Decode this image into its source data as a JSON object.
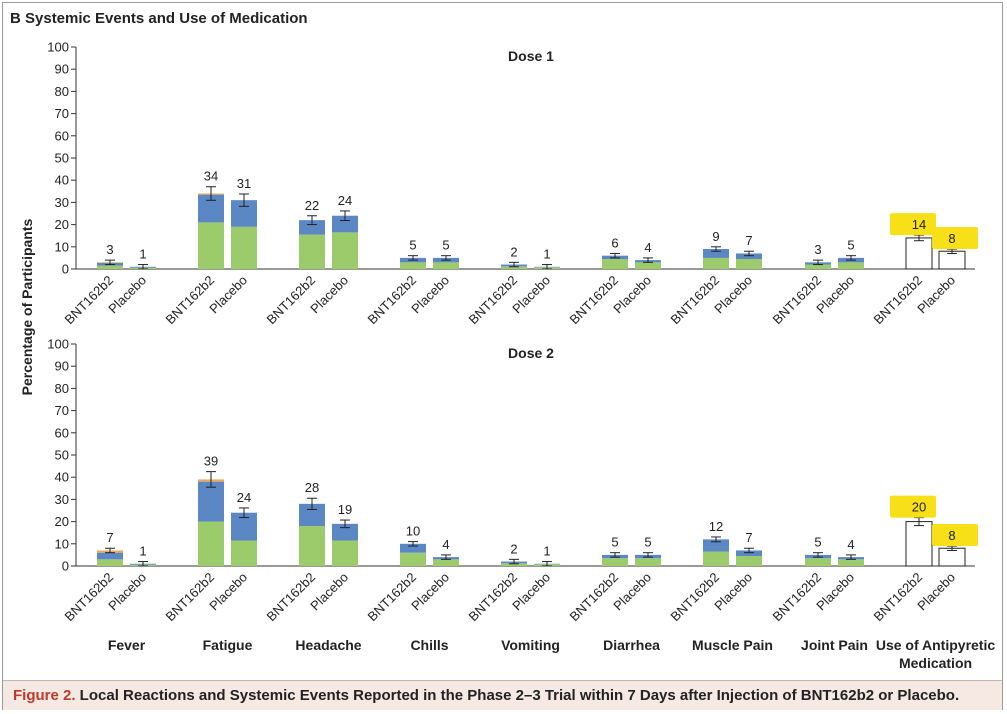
{
  "panel": {
    "title": "B  Systemic Events and Use of Medication"
  },
  "caption": {
    "label": "Figure 2.",
    "text": " Local Reactions and Systemic Events Reported in the Phase 2–3 Trial within 7 Days after Injection of BNT162b2 or Placebo."
  },
  "colors": {
    "mild": "#9ccb6b",
    "moderate": "#5b87c4",
    "severe": "#e9a85c",
    "highlight": "#f7e017",
    "outline_bar": "#ffffff"
  },
  "chart_data": {
    "type": "bar",
    "stacked": true,
    "ylabel": "Percentage of Participants",
    "ylim": [
      0,
      100
    ],
    "yticks": [
      0,
      10,
      20,
      30,
      40,
      50,
      60,
      70,
      80,
      90,
      100
    ],
    "groups": [
      "BNT162b2",
      "Placebo"
    ],
    "categories": [
      "Fever",
      "Fatigue",
      "Headache",
      "Chills",
      "Vomiting",
      "Diarrhea",
      "Muscle Pain",
      "Joint Pain",
      "Use of Antipyretic Medication"
    ],
    "panels": [
      {
        "title": "Dose 1",
        "totals": [
          [
            3,
            1
          ],
          [
            34,
            31
          ],
          [
            22,
            24
          ],
          [
            5,
            5
          ],
          [
            2,
            1
          ],
          [
            6,
            4
          ],
          [
            9,
            7
          ],
          [
            3,
            5
          ],
          [
            14,
            8
          ]
        ],
        "mild": [
          [
            1.5,
            0.6
          ],
          [
            21,
            19
          ],
          [
            15.5,
            16.5
          ],
          [
            3,
            3
          ],
          [
            1.2,
            0.8
          ],
          [
            4.5,
            3
          ],
          [
            5,
            4.5
          ],
          [
            2,
            3
          ],
          [
            0,
            0
          ]
        ],
        "moderate": [
          [
            1.2,
            0.4
          ],
          [
            12.5,
            12
          ],
          [
            6.5,
            7.5
          ],
          [
            2,
            2
          ],
          [
            0.8,
            0.2
          ],
          [
            1.5,
            1
          ],
          [
            4,
            2.5
          ],
          [
            1,
            2
          ],
          [
            0,
            0
          ]
        ],
        "severe": [
          [
            0.3,
            0
          ],
          [
            0.5,
            0
          ],
          [
            0,
            0
          ],
          [
            0,
            0
          ],
          [
            0,
            0
          ],
          [
            0,
            0
          ],
          [
            0,
            0
          ],
          [
            0,
            0
          ],
          [
            0,
            0
          ]
        ],
        "highlighted": [
          false,
          false,
          false,
          false,
          false,
          false,
          false,
          false,
          true
        ]
      },
      {
        "title": "Dose 2",
        "totals": [
          [
            7,
            1
          ],
          [
            39,
            24
          ],
          [
            28,
            19
          ],
          [
            10,
            4
          ],
          [
            2,
            1
          ],
          [
            5,
            5
          ],
          [
            12,
            7
          ],
          [
            5,
            4
          ],
          [
            20,
            8
          ]
        ],
        "mild": [
          [
            3,
            0.6
          ],
          [
            20,
            11.5
          ],
          [
            18,
            11.5
          ],
          [
            6,
            3
          ],
          [
            1.2,
            0.8
          ],
          [
            3.5,
            3.5
          ],
          [
            6.5,
            4.5
          ],
          [
            3.5,
            3
          ],
          [
            0,
            0
          ]
        ],
        "moderate": [
          [
            3,
            0.4
          ],
          [
            18,
            12.5
          ],
          [
            10,
            7.5
          ],
          [
            4,
            1
          ],
          [
            0.8,
            0.2
          ],
          [
            1.5,
            1.5
          ],
          [
            5.5,
            2.5
          ],
          [
            1.5,
            1
          ],
          [
            0,
            0
          ]
        ],
        "severe": [
          [
            1,
            0
          ],
          [
            1,
            0
          ],
          [
            0,
            0
          ],
          [
            0,
            0
          ],
          [
            0,
            0
          ],
          [
            0,
            0
          ],
          [
            0,
            0
          ],
          [
            0,
            0
          ],
          [
            0,
            0
          ]
        ],
        "highlighted": [
          false,
          false,
          false,
          false,
          false,
          false,
          false,
          false,
          true
        ]
      }
    ],
    "xlabels": [
      "Fever",
      "Fatigue",
      "Headache",
      "Chills",
      "Vomiting",
      "Diarrhea",
      "Muscle Pain",
      "Joint Pain",
      "Use of Antipyretic\nMedication"
    ],
    "grid": false
  }
}
